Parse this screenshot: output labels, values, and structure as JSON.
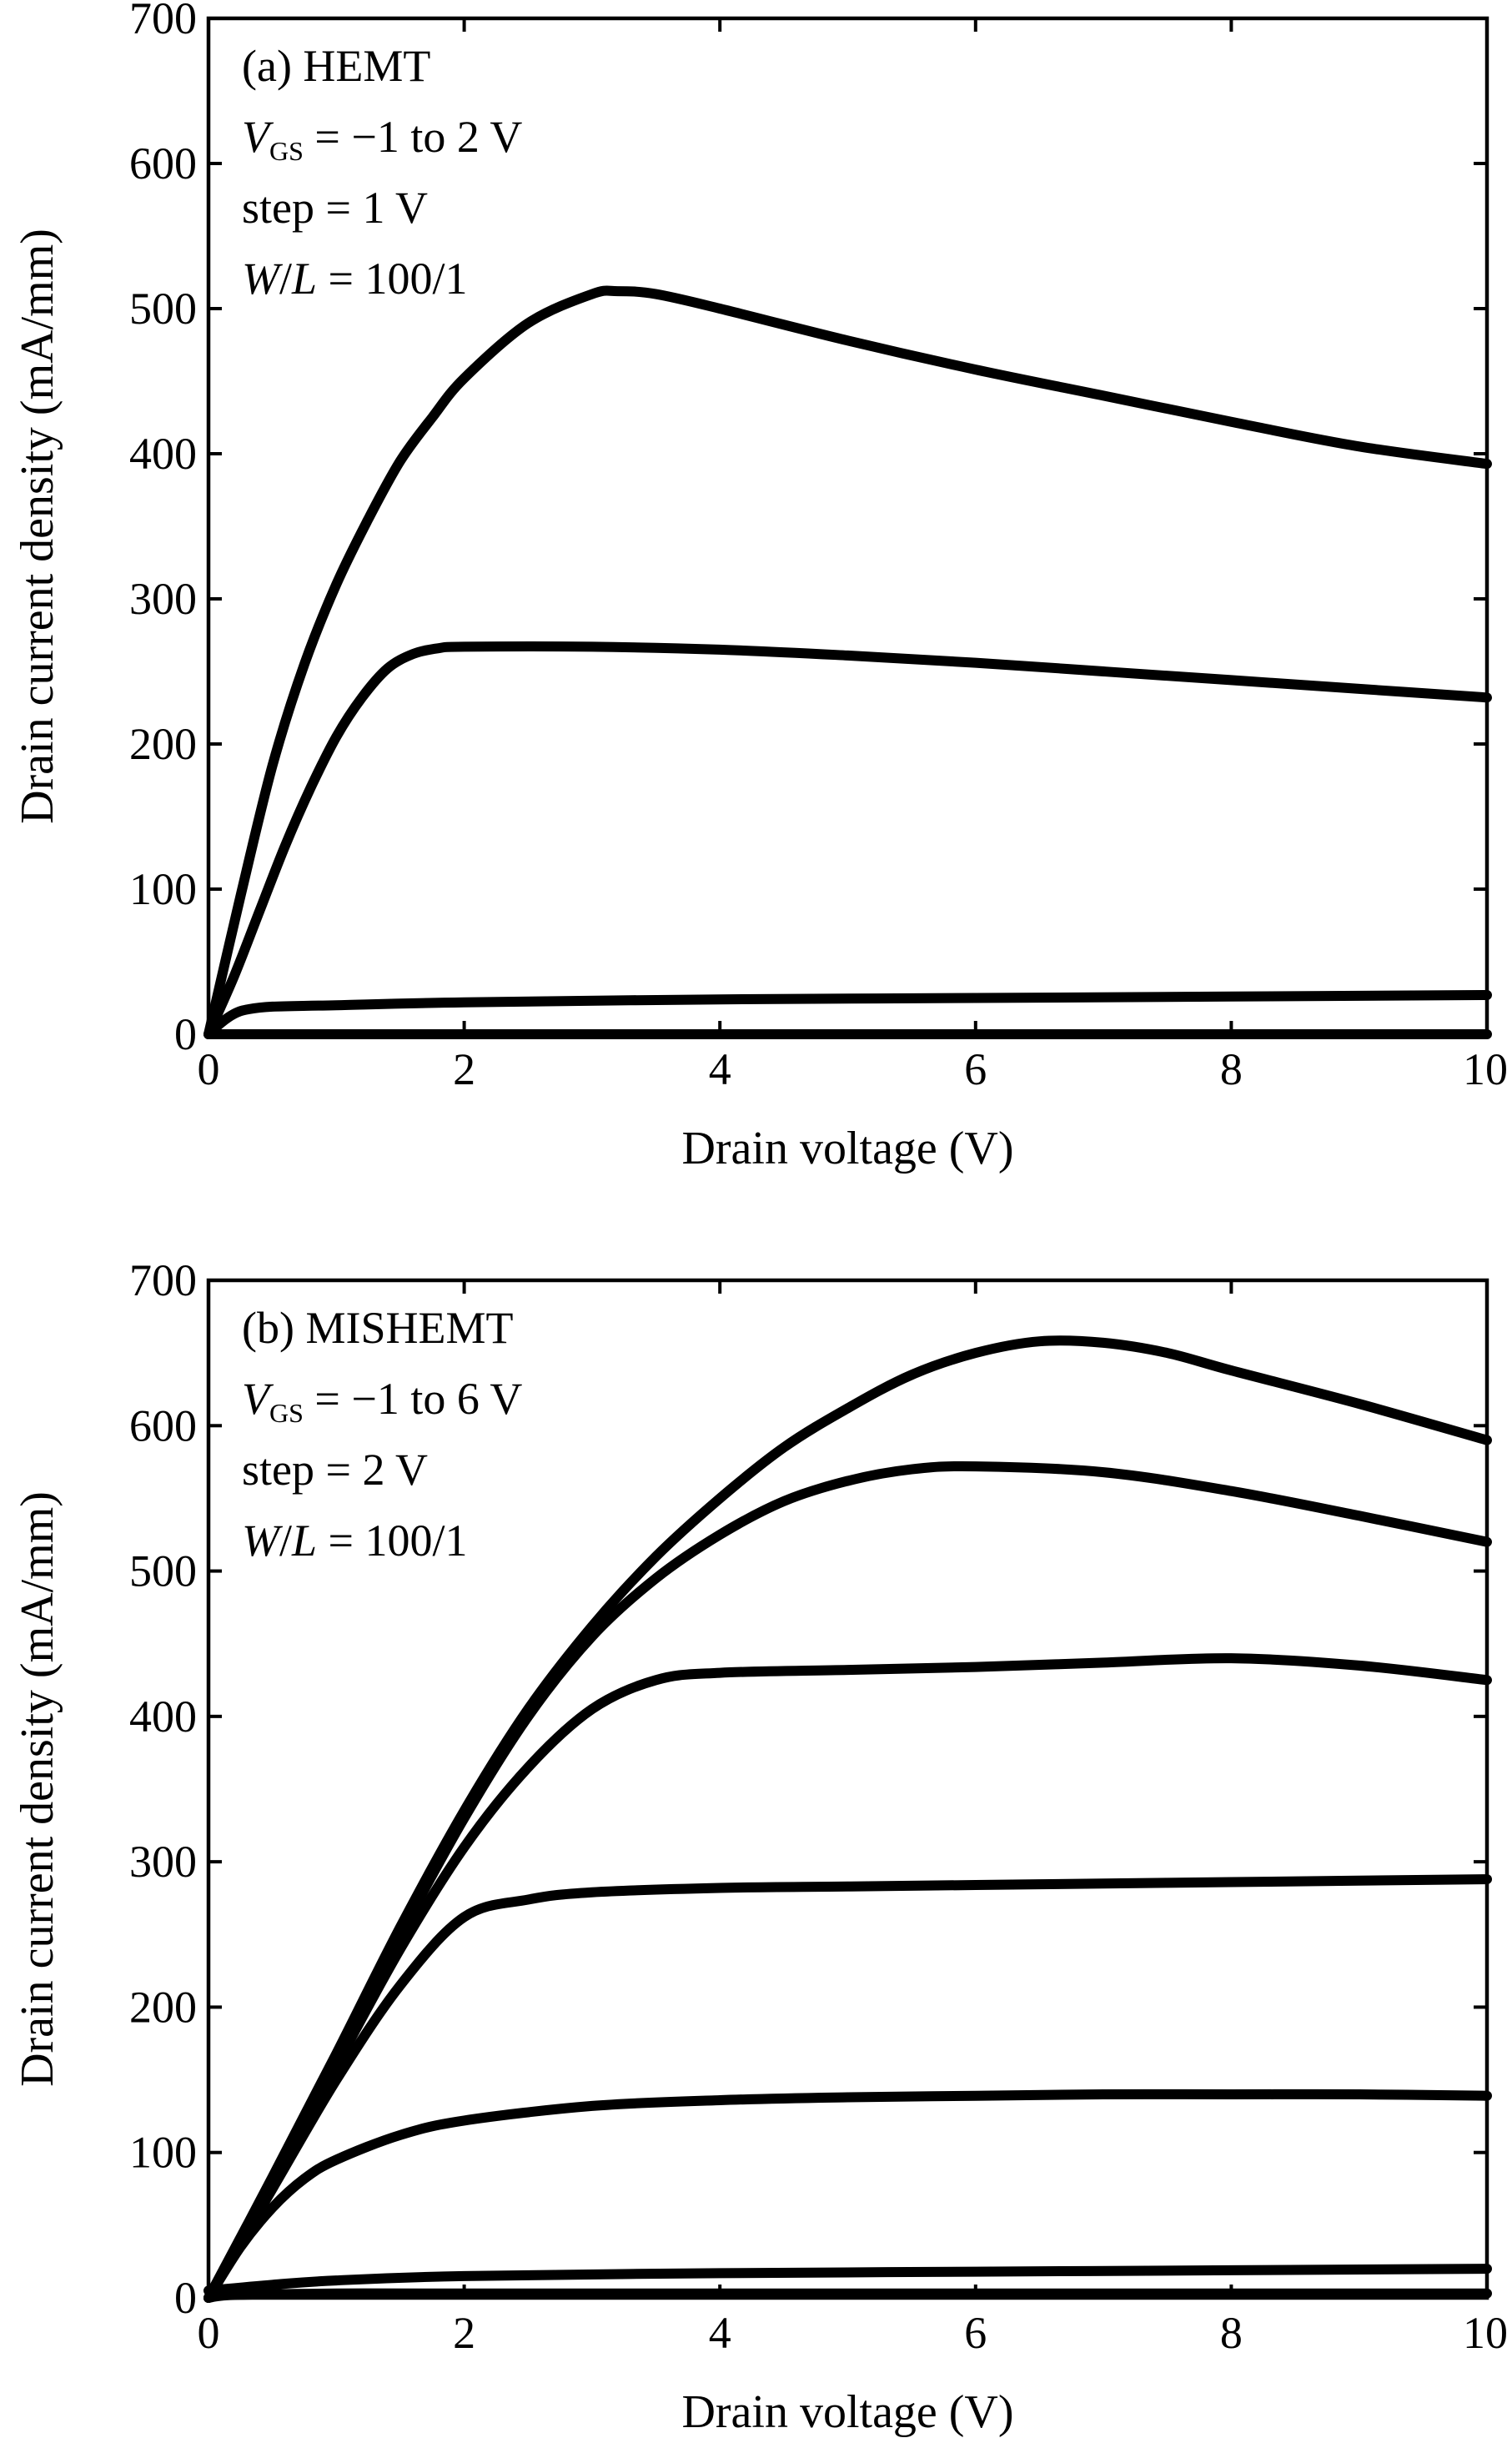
{
  "chart_data": [
    {
      "type": "line",
      "xlabel": "Drain voltage (V)",
      "ylabel": "Drain current density (mA/mm)",
      "xlim": [
        0,
        10
      ],
      "ylim": [
        0,
        700
      ],
      "xticks": [
        "0",
        "2",
        "4",
        "6",
        "8",
        "10"
      ],
      "yticks": [
        "0",
        "100",
        "200",
        "300",
        "400",
        "500",
        "600",
        "700"
      ],
      "grid": false,
      "annotations": {
        "title": "(a) HEMT",
        "vgs_symbol": "V",
        "vgs_subscript": "GS",
        "vgs_value": " = −1 to 2 V",
        "step": "step = 1 V",
        "wl_w": "W",
        "wl_slash": "/",
        "wl_l": "L",
        "wl_value": " = 100/1"
      },
      "series": [
        {
          "x": [
            0,
            0.1,
            0.2,
            1,
            2,
            4,
            6,
            8,
            10
          ],
          "y": [
            0,
            0,
            0,
            0,
            0,
            0,
            0,
            0,
            0
          ]
        },
        {
          "x": [
            0,
            0.1,
            0.2,
            0.3,
            0.5,
            1,
            2,
            4,
            6,
            8,
            10
          ],
          "y": [
            0,
            8,
            14,
            17,
            19,
            20,
            22,
            24,
            25,
            26,
            27
          ]
        },
        {
          "x": [
            0,
            0.2,
            0.4,
            0.6,
            0.8,
            1.0,
            1.2,
            1.4,
            1.6,
            1.8,
            2,
            3,
            4,
            5,
            6,
            7,
            8,
            9,
            10
          ],
          "y": [
            0,
            40,
            85,
            130,
            170,
            205,
            232,
            252,
            262,
            266,
            267,
            267,
            265,
            261,
            256,
            250,
            244,
            238,
            232
          ]
        },
        {
          "x": [
            0,
            0.25,
            0.5,
            0.75,
            1.0,
            1.25,
            1.5,
            1.75,
            2.0,
            2.5,
            3.0,
            3.2,
            3.5,
            4,
            5,
            6,
            7,
            8,
            9,
            10
          ],
          "y": [
            0,
            95,
            185,
            255,
            310,
            355,
            395,
            425,
            452,
            490,
            510,
            512,
            510,
            500,
            478,
            458,
            440,
            422,
            405,
            393
          ]
        }
      ]
    },
    {
      "type": "line",
      "xlabel": "Drain voltage (V)",
      "ylabel": "Drain current density (mA/mm)",
      "xlim": [
        0,
        10
      ],
      "ylim": [
        0,
        700
      ],
      "xticks": [
        "0",
        "2",
        "4",
        "6",
        "8",
        "10"
      ],
      "yticks": [
        "0",
        "100",
        "200",
        "300",
        "400",
        "500",
        "600",
        "700"
      ],
      "grid": false,
      "annotations": {
        "title": "(b) MISHEMT",
        "vgs_symbol": "V",
        "vgs_subscript": "GS",
        "vgs_value": " = −1 to 6 V",
        "step": "step = 2 V",
        "wl_w": "W",
        "wl_slash": "/",
        "wl_l": "L",
        "wl_value": " = 100/1"
      },
      "series": [
        {
          "x": [
            0,
            0.2,
            1,
            2,
            4,
            6,
            8,
            10
          ],
          "y": [
            0,
            2,
            3,
            3,
            3,
            3,
            3,
            3
          ]
        },
        {
          "x": [
            0,
            0.5,
            1,
            2,
            4,
            6,
            8,
            10
          ],
          "y": [
            5,
            9,
            12,
            15,
            17,
            18,
            19,
            20
          ]
        },
        {
          "x": [
            0,
            0.25,
            0.5,
            0.75,
            1.0,
            1.5,
            2,
            3,
            4,
            5,
            6,
            7,
            8,
            9,
            10
          ],
          "y": [
            0,
            35,
            62,
            82,
            95,
            112,
            122,
            132,
            136,
            138,
            139,
            140,
            140,
            140,
            139
          ]
        },
        {
          "x": [
            0,
            0.5,
            1,
            1.5,
            2,
            2.5,
            3,
            4,
            5,
            6,
            7,
            8,
            9,
            10
          ],
          "y": [
            0,
            75,
            150,
            215,
            262,
            274,
            279,
            282,
            283,
            284,
            285,
            286,
            287,
            288
          ]
        },
        {
          "x": [
            0,
            0.5,
            1,
            1.5,
            2,
            2.5,
            3,
            3.5,
            4,
            5,
            6,
            7,
            8,
            9,
            10
          ],
          "y": [
            0,
            80,
            160,
            240,
            310,
            365,
            405,
            425,
            430,
            432,
            434,
            437,
            440,
            435,
            425
          ]
        },
        {
          "x": [
            0,
            0.5,
            1,
            1.5,
            2,
            2.5,
            3,
            3.5,
            4,
            4.5,
            5,
            5.5,
            6,
            7,
            8,
            9,
            10
          ],
          "y": [
            0,
            82,
            165,
            250,
            330,
            400,
            455,
            495,
            525,
            548,
            562,
            570,
            572,
            568,
            555,
            538,
            520
          ]
        },
        {
          "x": [
            0,
            0.5,
            1,
            1.5,
            2,
            2.5,
            3,
            3.5,
            4,
            4.5,
            5,
            5.5,
            6,
            6.5,
            7,
            7.5,
            8,
            9,
            10
          ],
          "y": [
            0,
            83,
            168,
            255,
            335,
            405,
            462,
            510,
            550,
            585,
            612,
            635,
            650,
            658,
            657,
            650,
            638,
            615,
            590
          ]
        }
      ]
    }
  ]
}
